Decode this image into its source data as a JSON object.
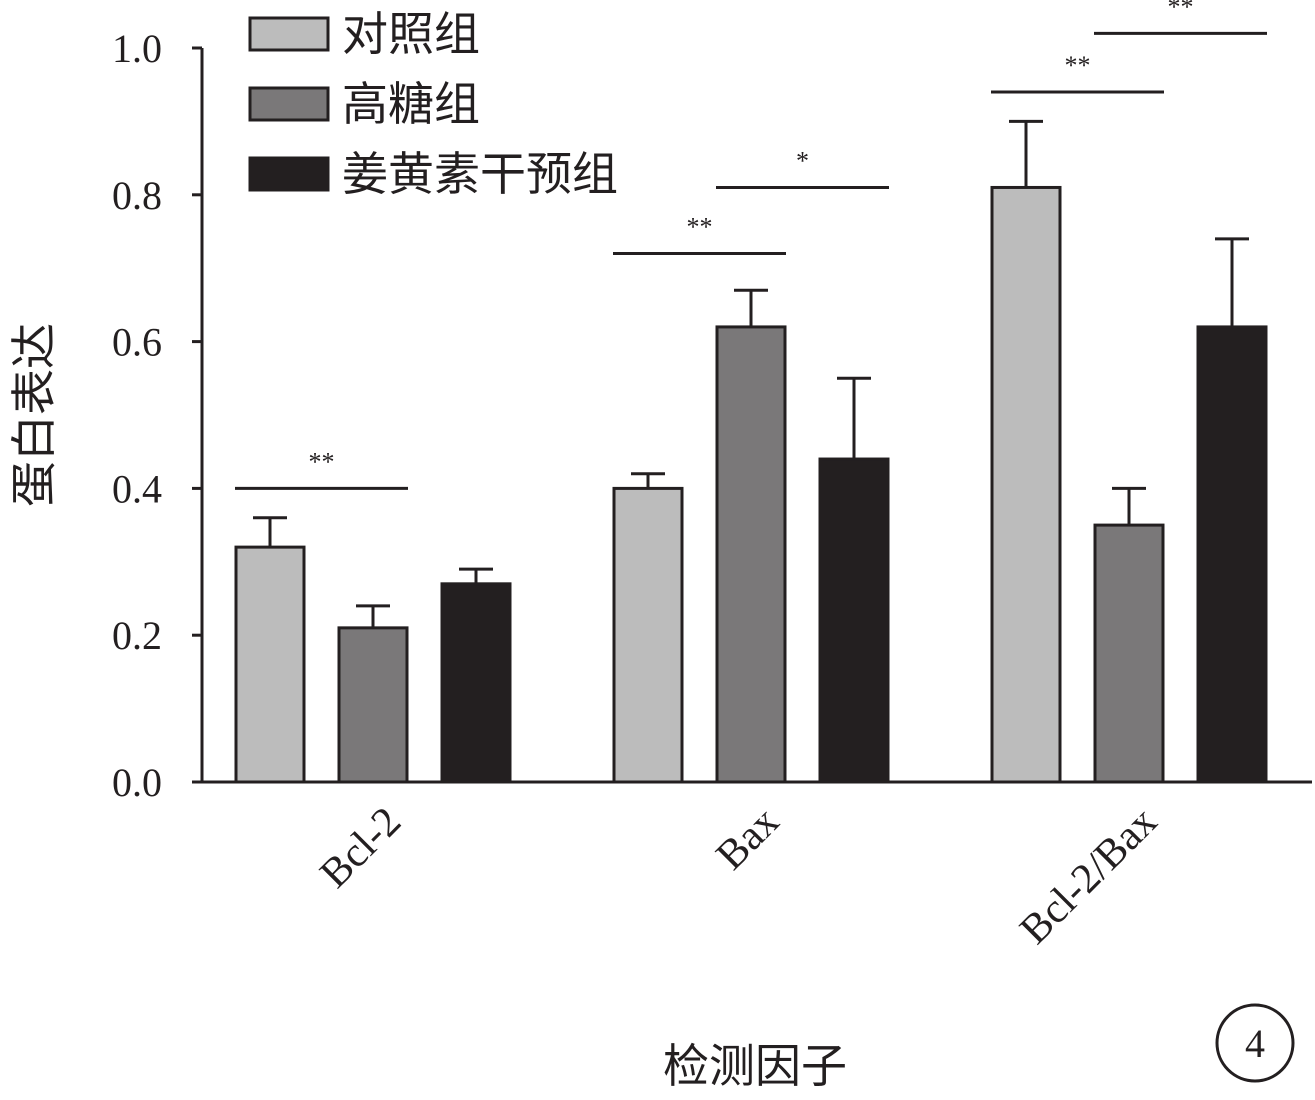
{
  "chart_data": {
    "type": "bar",
    "xlabel": "检测因子",
    "ylabel": "蛋白表达",
    "ylim": [
      0,
      1.0
    ],
    "yticks": [
      "0.0",
      "0.2",
      "0.4",
      "0.6",
      "0.8",
      "1.0"
    ],
    "categories": [
      "Bcl-2",
      "Bax",
      "Bcl-2/Bax"
    ],
    "series": [
      {
        "name": "对照组",
        "color": "#bcbcbc",
        "values": [
          0.32,
          0.4,
          0.81
        ],
        "errors": [
          0.04,
          0.02,
          0.09
        ]
      },
      {
        "name": "高糖组",
        "color": "#7a7879",
        "values": [
          0.21,
          0.62,
          0.35
        ],
        "errors": [
          0.03,
          0.05,
          0.05
        ]
      },
      {
        "name": "姜黄素干预组",
        "color": "#231f20",
        "values": [
          0.27,
          0.44,
          0.62
        ],
        "errors": [
          0.02,
          0.11,
          0.12
        ]
      }
    ],
    "significance": [
      {
        "category": 0,
        "from": 0,
        "to": 1,
        "label": "**",
        "level": 0.4
      },
      {
        "category": 1,
        "from": 0,
        "to": 1,
        "label": "**",
        "level": 0.72
      },
      {
        "category": 1,
        "from": 1,
        "to": 2,
        "label": "*",
        "level": 0.81
      },
      {
        "category": 2,
        "from": 0,
        "to": 1,
        "label": "**",
        "level": 0.94
      },
      {
        "category": 2,
        "from": 1,
        "to": 2,
        "label": "**",
        "level": 1.02
      }
    ],
    "legend_position": "top-left",
    "panel_label": "4"
  }
}
